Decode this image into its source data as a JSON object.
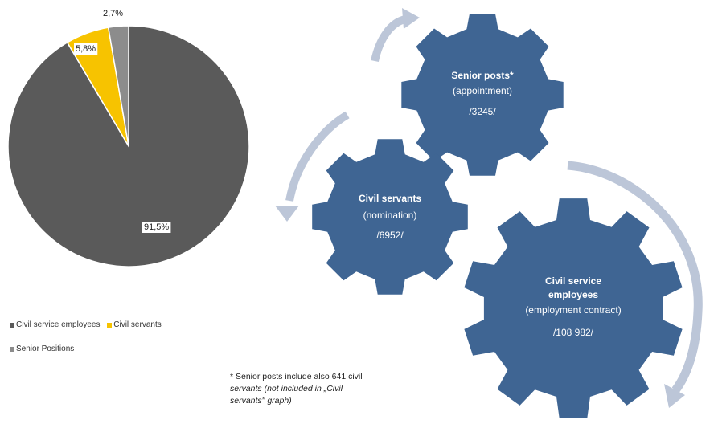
{
  "chart_data": {
    "type": "pie",
    "categories": [
      "Civil service employees",
      "Civil servants",
      "Senior Positions"
    ],
    "values": [
      91.5,
      5.8,
      2.7
    ],
    "value_labels": [
      "91,5%",
      "5,8%",
      "2,7%"
    ],
    "colors": [
      "#5a5a5a",
      "#f7c300",
      "#8c8c8c"
    ],
    "legend": {
      "placement": "bottom-left",
      "items": [
        {
          "label": "Civil service employees",
          "color": "#5a5a5a"
        },
        {
          "label": "Civil servants",
          "color": "#f7c300"
        },
        {
          "label": "Senior Positions",
          "color": "#8c8c8c"
        }
      ]
    }
  },
  "gears": [
    {
      "title": "Senior posts*",
      "subtitle": "(appointment)",
      "count": "/3245/"
    },
    {
      "title": "Civil servants",
      "subtitle": "(nomination)",
      "count": "/6952/"
    },
    {
      "title_line1": "Civil service",
      "title_line2": "employees",
      "subtitle": "(employment contract)",
      "count": "/108 982/"
    }
  ],
  "footnote": {
    "line1": "* Senior posts include also 641 civil",
    "line2": "servants (not included in „Civil",
    "line3": "servants\" graph)"
  },
  "colors": {
    "gear": "#3f6593",
    "arrow": "#bcc6d8"
  }
}
